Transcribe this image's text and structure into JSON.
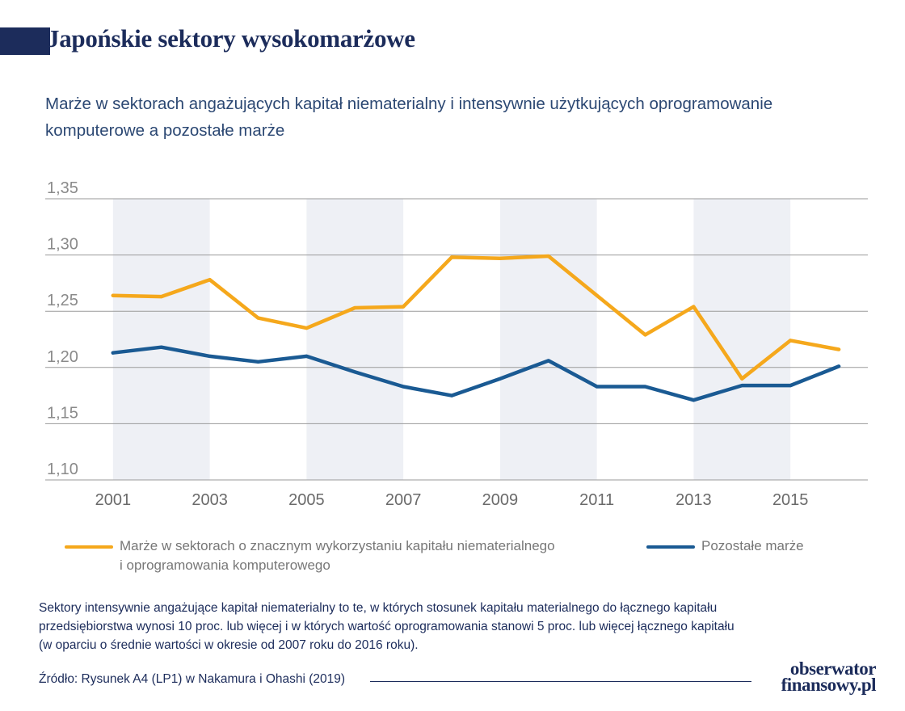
{
  "header": {
    "title": "Japońskie sektory wysokomarżowe",
    "subtitle": "Marże w sektorach angażujących kapitał niematerialny i intensywnie użytkujących oprogramowanie komputerowe a pozostałe marże"
  },
  "colors": {
    "orange": "#f5a81c",
    "blue": "#1a5a93",
    "navy": "#1c2c5b",
    "band": "#eef0f5",
    "grid": "#9a9a9a"
  },
  "chart_data": {
    "type": "line",
    "x": [
      2001,
      2002,
      2003,
      2004,
      2005,
      2006,
      2007,
      2008,
      2009,
      2010,
      2011,
      2012,
      2013,
      2014,
      2015,
      2016
    ],
    "xticks": [
      2001,
      2003,
      2005,
      2007,
      2009,
      2011,
      2013,
      2015
    ],
    "xtick_labels": [
      "2001",
      "2003",
      "2005",
      "2007",
      "2009",
      "2011",
      "2013",
      "2015"
    ],
    "yticks": [
      1.1,
      1.15,
      1.2,
      1.25,
      1.3,
      1.35
    ],
    "ytick_labels": [
      "1,10",
      "1,15",
      "1,20",
      "1,25",
      "1,30",
      "1,35"
    ],
    "ylim": [
      1.1,
      1.35
    ],
    "xlim": [
      1999.6,
      2016.6
    ],
    "shaded_bands": [
      [
        2001,
        2003
      ],
      [
        2005,
        2007
      ],
      [
        2009,
        2011
      ],
      [
        2013,
        2015
      ]
    ],
    "grid": "horizontal",
    "legend_position": "bottom",
    "series": [
      {
        "name": "Marże w sektorach o znacznym wykorzystaniu kapitału niematerialnego i oprogramowania komputerowego",
        "color": "#f5a81c",
        "values": [
          1.264,
          1.263,
          1.278,
          1.244,
          1.235,
          1.253,
          1.254,
          1.298,
          1.297,
          1.299,
          1.264,
          1.229,
          1.254,
          1.19,
          1.224,
          1.216
        ]
      },
      {
        "name": "Pozostałe marże",
        "color": "#1a5a93",
        "values": [
          1.213,
          1.218,
          1.21,
          1.205,
          1.21,
          1.196,
          1.183,
          1.175,
          1.19,
          1.206,
          1.183,
          1.183,
          1.171,
          1.184,
          1.184,
          1.201
        ]
      }
    ]
  },
  "legend": {
    "item1_line1": "Marże w sektorach o znacznym wykorzystaniu kapitału niematerialnego",
    "item1_line2": "i oprogramowania komputerowego",
    "item2": "Pozostałe marże"
  },
  "footnote": {
    "line1": "Sektory intensywnie angażujące kapitał niematerialny to te, w których stosunek kapitału materialnego do łącznego kapitału",
    "line2": "przedsiębiorstwa wynosi 10 proc. lub więcej i w których wartość oprogramowania stanowi 5 proc. lub więcej łącznego kapitału",
    "line3": "(w oparciu o średnie wartości w okresie od 2007 roku do 2016 roku)."
  },
  "source": "Źródło: Rysunek A4 (LP1) w Nakamura i Ohashi (2019)",
  "logo": {
    "line1": "obserwator",
    "line2": "finansowy.pl"
  }
}
